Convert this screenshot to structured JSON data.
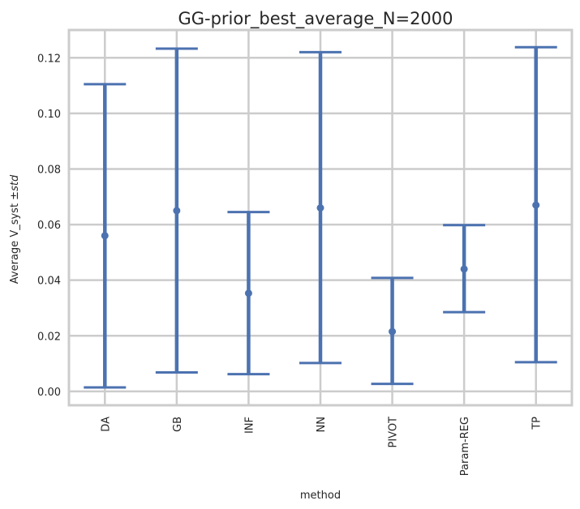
{
  "chart_data": {
    "type": "errorbar",
    "title": "GG-prior_best_average_N=2000",
    "xlabel": "method",
    "ylabel_text": "Average V_syst ±",
    "ylabel_italic": "std",
    "categories": [
      "DA",
      "GB",
      "INF",
      "NN",
      "PIVOT",
      "Param-REG",
      "TP"
    ],
    "means": [
      0.056,
      0.065,
      0.0353,
      0.066,
      0.0215,
      0.044,
      0.067
    ],
    "lower": [
      0.0014,
      0.0068,
      0.0062,
      0.0102,
      0.0027,
      0.0285,
      0.0105
    ],
    "upper": [
      0.1105,
      0.1233,
      0.0645,
      0.122,
      0.0408,
      0.0598,
      0.1238
    ],
    "yticks": [
      0.0,
      0.02,
      0.04,
      0.06,
      0.08,
      0.1,
      0.12
    ],
    "ytick_labels": [
      "0.00",
      "0.02",
      "0.04",
      "0.06",
      "0.08",
      "0.10",
      "0.12"
    ],
    "ylim": [
      -0.005,
      0.13
    ],
    "grid": true,
    "series_color": "#4c72b0",
    "grid_color": "#cccccc"
  }
}
